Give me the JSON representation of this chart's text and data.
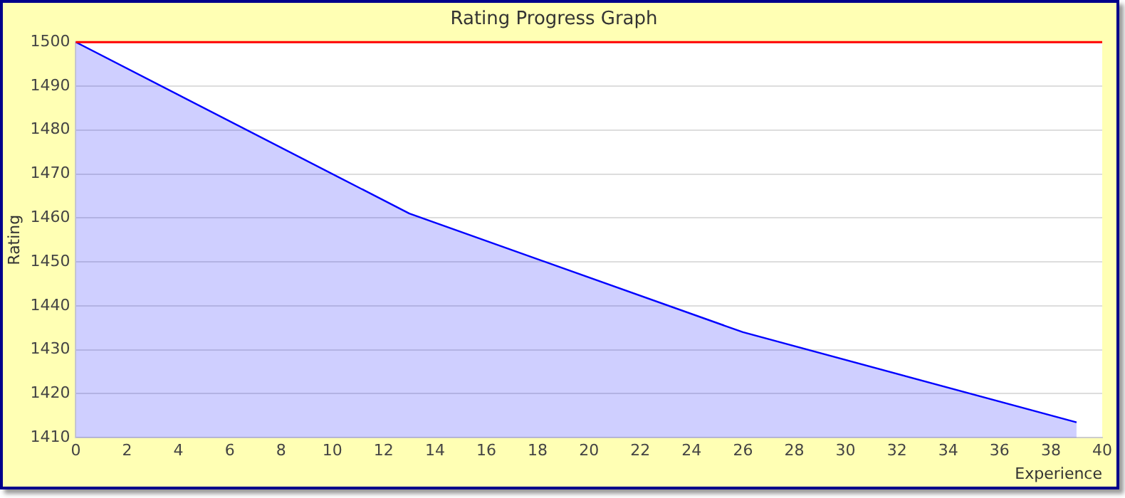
{
  "chart_data": {
    "type": "area",
    "title": "Rating Progress Graph",
    "xlabel": "Experience",
    "ylabel": "Rating",
    "x": [
      0,
      13,
      26,
      39
    ],
    "series": [
      {
        "color": "#0000ff",
        "values": [
          1500,
          1461,
          1434,
          1413.5
        ]
      }
    ],
    "xlim": [
      0,
      40
    ],
    "xticks": [
      0,
      2,
      4,
      6,
      8,
      10,
      12,
      14,
      16,
      18,
      20,
      22,
      24,
      26,
      28,
      30,
      32,
      34,
      36,
      38,
      40
    ],
    "ylim": [
      1410,
      1500
    ],
    "yticks": [
      1410,
      1420,
      1430,
      1440,
      1450,
      1460,
      1470,
      1480,
      1490,
      1500
    ],
    "ref_lines": [
      {
        "axis": "y",
        "value": 1500,
        "color": "#ff0000"
      }
    ],
    "grid": "y",
    "legend": false,
    "marker": "none",
    "line_style": "solid"
  }
}
